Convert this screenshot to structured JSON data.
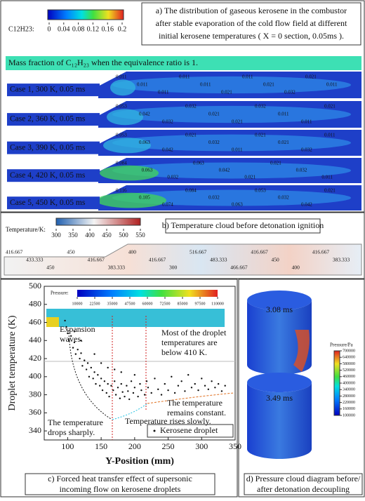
{
  "panel_a": {
    "colorbar": {
      "label": "C12H23:",
      "ticks": [
        0,
        0.04,
        0.08,
        0.12,
        0.16,
        0.2
      ]
    },
    "caption": [
      "a) The distribution of gaseous kerosene in the combustor",
      "after stable evaporation of the cold flow field at different",
      "initial kerosene temperatures ( X = 0 section, 0.05ms )."
    ],
    "banner": "Mass fraction of C₁₂H₂₃ when the equivalence ratio is 1.",
    "cases": [
      {
        "label": "Case 1, 300 K, 0.05 ms",
        "contours": [
          "0.011",
          "0.011",
          "0.011",
          "0.011",
          "0.011",
          "0.021",
          "0.011",
          "0.021",
          "0.032",
          "0.021",
          "0.011"
        ]
      },
      {
        "label": "Case 2, 360 K,  0.05 ms",
        "contours": [
          "0.053",
          "0.042",
          "0.032",
          "0.032",
          "0.021",
          "0.021",
          "0.032",
          "0.011",
          "0.011",
          "0.021"
        ]
      },
      {
        "label": "Case 3, 390 K, 0.05 ms",
        "contours": [
          "0.053",
          "0.063",
          "0.042",
          "0.021",
          "0.032",
          "0.011",
          "0.021",
          "0.021",
          "0.032",
          "0.011"
        ]
      },
      {
        "label": "Case 4, 420 K, 0.05 ms",
        "contours": [
          "0.084",
          "0.063",
          "0.032",
          "0.063",
          "0.042",
          "0.021",
          "0.021",
          "0.032",
          "0.011"
        ]
      },
      {
        "label": "Case 5, 450 K,  0.05 ms",
        "contours": [
          "0.116",
          "0.105",
          "0.074",
          "0.084",
          "0.032",
          "0.063",
          "0.053",
          "0.032",
          "0.042",
          "0.021"
        ]
      }
    ]
  },
  "panel_b": {
    "colorbar": {
      "label": "Temperature/K:",
      "ticks": [
        300,
        350,
        400,
        450,
        500,
        550
      ]
    },
    "caption": "b) Temperature cloud before detonation ignition",
    "contours": [
      "416.667",
      "433.333",
      "450",
      "450",
      "416.667",
      "383.333",
      "400",
      "416.667",
      "300",
      "516.667",
      "483.333",
      "466.667",
      "416.667",
      "450",
      "400",
      "416.667",
      "383.333"
    ]
  },
  "panel_c": {
    "xlabel": "Y-Position (mm)",
    "ylabel": "Droplet temperature (K)",
    "xlim": [
      65,
      350
    ],
    "ylim": [
      330,
      500
    ],
    "xticks": [
      100,
      150,
      200,
      250,
      300,
      350
    ],
    "yticks": [
      340,
      360,
      380,
      400,
      420,
      440,
      460,
      480,
      500
    ],
    "legend": "Kerosene droplet",
    "colorbar": {
      "label": "Pressure:",
      "ticks": [
        10000,
        22500,
        35000,
        47500,
        60000,
        72500,
        85000,
        97500,
        110000
      ]
    },
    "annotations": {
      "expansion": [
        "Expansion",
        "waves."
      ],
      "most": [
        "Most of the droplet",
        "temperatures are",
        "below 410 K."
      ],
      "constant": [
        "The temperature",
        "remains constant."
      ],
      "rises": [
        "Temperature rises slowly."
      ],
      "drops": [
        "The temperature",
        "drops sharply."
      ]
    },
    "scatter": {
      "x": [
        96,
        98,
        100,
        102,
        105,
        108,
        110,
        112,
        115,
        118,
        120,
        122,
        125,
        128,
        130,
        132,
        135,
        138,
        140,
        142,
        145,
        148,
        150,
        152,
        155,
        158,
        160,
        162,
        165,
        168,
        170,
        172,
        175,
        178,
        180,
        182,
        185,
        188,
        190,
        192,
        195,
        198,
        200,
        205,
        208,
        210,
        215,
        218,
        220,
        225,
        230,
        235,
        240,
        245,
        250,
        255,
        260,
        265,
        270,
        275,
        280,
        285,
        290,
        295,
        300,
        305,
        310,
        315,
        320,
        325,
        330,
        335,
        140,
        160,
        180,
        200,
        120,
        110,
        150,
        170
      ],
      "y": [
        462,
        455,
        448,
        440,
        445,
        432,
        438,
        425,
        430,
        420,
        426,
        412,
        418,
        408,
        415,
        400,
        410,
        398,
        405,
        392,
        402,
        390,
        398,
        385,
        395,
        382,
        392,
        378,
        390,
        385,
        395,
        380,
        388,
        376,
        392,
        383,
        378,
        390,
        384,
        375,
        395,
        382,
        388,
        378,
        392,
        385,
        380,
        395,
        388,
        382,
        398,
        386,
        380,
        392,
        385,
        400,
        382,
        390,
        395,
        384,
        402,
        388,
        392,
        385,
        398,
        390,
        386,
        395,
        388,
        392,
        384,
        390,
        425,
        410,
        405,
        402,
        440,
        450,
        415,
        408
      ]
    },
    "caption": [
      "c) Forced heat transfer effect of supersonic",
      "incoming flow on kerosene droplets"
    ]
  },
  "panel_d": {
    "times": [
      "3.08 ms",
      "3.49 ms"
    ],
    "colorbar": {
      "label": "Pressure/Pa",
      "ticks": [
        700000,
        640000,
        580000,
        520000,
        460000,
        400000,
        340000,
        280000,
        220000,
        160000,
        100000
      ]
    },
    "caption": [
      "d) Pressure cloud diagram before/",
      "after detonation decoupling"
    ]
  }
}
